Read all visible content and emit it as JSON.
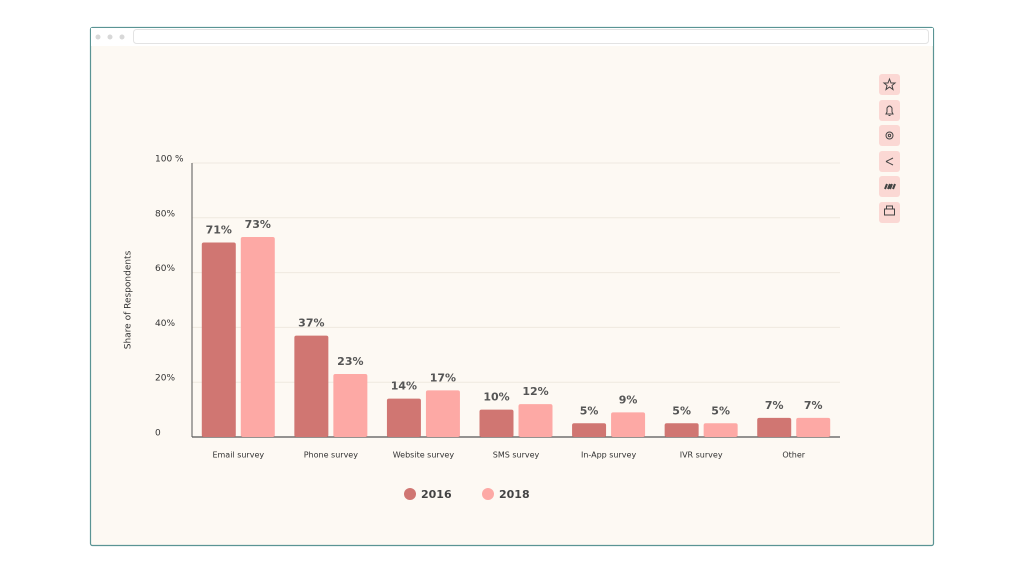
{
  "chart_data": {
    "type": "bar",
    "y_label": "Share of Respondents",
    "categories": [
      "Email survey",
      "Phone survey",
      "Website survey",
      "SMS survey",
      "In-App survey",
      "IVR survey",
      "Other"
    ],
    "series": [
      {
        "name": "2016",
        "color": "#d07672",
        "values": [
          71,
          37,
          14,
          10,
          5,
          5,
          7
        ],
        "value_labels": [
          "71%",
          "37%",
          "14%",
          "10%",
          "5%",
          "5%",
          "7%"
        ]
      },
      {
        "name": "2018",
        "color": "#fda9a5",
        "values": [
          73,
          23,
          17,
          12,
          9,
          5,
          7
        ],
        "value_labels": [
          "73%",
          "23%",
          "17%",
          "12%",
          "9%",
          "5%",
          "7%"
        ]
      }
    ],
    "ylim": [
      0,
      100
    ],
    "yticks": [
      0,
      {
        "value": 20,
        "label": "20%"
      },
      {
        "value": 40,
        "label": "40%"
      },
      {
        "value": 60,
        "label": "60%"
      },
      {
        "value": 80,
        "label": "80%"
      },
      {
        "value": 100,
        "label": "100 %"
      }
    ],
    "grid": true
  }
}
